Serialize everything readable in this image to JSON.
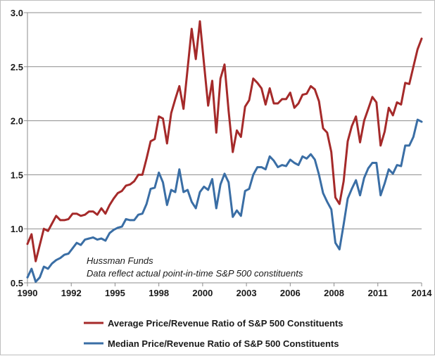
{
  "chart_data": {
    "type": "line",
    "title": "",
    "xlabel": "",
    "ylabel": "",
    "xlim": [
      1990,
      2014
    ],
    "ylim": [
      0.5,
      3.0
    ],
    "x_ticks": [
      "1990",
      "1992",
      "1995",
      "1998",
      "2000",
      "2003",
      "2006",
      "2008",
      "2011",
      "2014"
    ],
    "y_ticks": [
      "0.5",
      "1.0",
      "1.5",
      "2.0",
      "2.5",
      "3.0"
    ],
    "grid": "horizontal",
    "legend_position": "bottom",
    "annotations": [
      "Hussman Funds",
      "Data reflect actual point-in-time S&P 500 constituents"
    ],
    "series": [
      {
        "name": "Average Price/Revenue Ratio of S&P 500 Constituents",
        "color": "#a52a2a",
        "points": [
          [
            1990.0,
            0.86
          ],
          [
            1990.25,
            0.95
          ],
          [
            1990.5,
            0.7
          ],
          [
            1990.75,
            0.85
          ],
          [
            1991.0,
            1.0
          ],
          [
            1991.25,
            0.98
          ],
          [
            1991.5,
            1.05
          ],
          [
            1991.75,
            1.12
          ],
          [
            1992.0,
            1.08
          ],
          [
            1992.25,
            1.08
          ],
          [
            1992.5,
            1.09
          ],
          [
            1992.75,
            1.14
          ],
          [
            1993.0,
            1.14
          ],
          [
            1993.25,
            1.12
          ],
          [
            1993.5,
            1.13
          ],
          [
            1993.75,
            1.16
          ],
          [
            1994.0,
            1.16
          ],
          [
            1994.25,
            1.13
          ],
          [
            1994.5,
            1.19
          ],
          [
            1994.75,
            1.14
          ],
          [
            1995.0,
            1.22
          ],
          [
            1995.25,
            1.28
          ],
          [
            1995.5,
            1.33
          ],
          [
            1995.75,
            1.35
          ],
          [
            1996.0,
            1.4
          ],
          [
            1996.25,
            1.41
          ],
          [
            1996.5,
            1.44
          ],
          [
            1996.75,
            1.5
          ],
          [
            1997.0,
            1.5
          ],
          [
            1997.25,
            1.65
          ],
          [
            1997.5,
            1.81
          ],
          [
            1997.75,
            1.83
          ],
          [
            1998.0,
            2.04
          ],
          [
            1998.25,
            2.02
          ],
          [
            1998.5,
            1.79
          ],
          [
            1998.75,
            2.07
          ],
          [
            1999.0,
            2.2
          ],
          [
            1999.25,
            2.32
          ],
          [
            1999.5,
            2.11
          ],
          [
            1999.75,
            2.48
          ],
          [
            2000.0,
            2.85
          ],
          [
            2000.25,
            2.57
          ],
          [
            2000.5,
            2.92
          ],
          [
            2000.75,
            2.53
          ],
          [
            2001.0,
            2.14
          ],
          [
            2001.25,
            2.37
          ],
          [
            2001.5,
            1.89
          ],
          [
            2001.75,
            2.39
          ],
          [
            2002.0,
            2.52
          ],
          [
            2002.25,
            2.09
          ],
          [
            2002.5,
            1.71
          ],
          [
            2002.75,
            1.91
          ],
          [
            2003.0,
            1.85
          ],
          [
            2003.25,
            2.13
          ],
          [
            2003.5,
            2.19
          ],
          [
            2003.75,
            2.39
          ],
          [
            2004.0,
            2.35
          ],
          [
            2004.25,
            2.3
          ],
          [
            2004.5,
            2.15
          ],
          [
            2004.75,
            2.3
          ],
          [
            2005.0,
            2.16
          ],
          [
            2005.25,
            2.16
          ],
          [
            2005.5,
            2.2
          ],
          [
            2005.75,
            2.2
          ],
          [
            2006.0,
            2.26
          ],
          [
            2006.25,
            2.12
          ],
          [
            2006.5,
            2.16
          ],
          [
            2006.75,
            2.24
          ],
          [
            2007.0,
            2.25
          ],
          [
            2007.25,
            2.32
          ],
          [
            2007.5,
            2.29
          ],
          [
            2007.75,
            2.18
          ],
          [
            2008.0,
            1.93
          ],
          [
            2008.25,
            1.89
          ],
          [
            2008.5,
            1.71
          ],
          [
            2008.75,
            1.29
          ],
          [
            2009.0,
            1.23
          ],
          [
            2009.25,
            1.44
          ],
          [
            2009.5,
            1.81
          ],
          [
            2009.75,
            1.95
          ],
          [
            2010.0,
            2.04
          ],
          [
            2010.25,
            1.8
          ],
          [
            2010.5,
            2.0
          ],
          [
            2010.75,
            2.11
          ],
          [
            2011.0,
            2.22
          ],
          [
            2011.25,
            2.17
          ],
          [
            2011.5,
            1.77
          ],
          [
            2011.75,
            1.9
          ],
          [
            2012.0,
            2.12
          ],
          [
            2012.25,
            2.05
          ],
          [
            2012.5,
            2.17
          ],
          [
            2012.75,
            2.15
          ],
          [
            2013.0,
            2.35
          ],
          [
            2013.25,
            2.34
          ],
          [
            2013.5,
            2.5
          ],
          [
            2013.75,
            2.66
          ],
          [
            2014.0,
            2.76
          ]
        ]
      },
      {
        "name": "Median Price/Revenue Ratio of S&P 500 Constituents",
        "color": "#3a6ea5",
        "points": [
          [
            1990.0,
            0.55
          ],
          [
            1990.25,
            0.63
          ],
          [
            1990.5,
            0.51
          ],
          [
            1990.75,
            0.55
          ],
          [
            1991.0,
            0.65
          ],
          [
            1991.25,
            0.63
          ],
          [
            1991.5,
            0.68
          ],
          [
            1991.75,
            0.71
          ],
          [
            1992.0,
            0.73
          ],
          [
            1992.25,
            0.76
          ],
          [
            1992.5,
            0.77
          ],
          [
            1992.75,
            0.82
          ],
          [
            1993.0,
            0.87
          ],
          [
            1993.25,
            0.85
          ],
          [
            1993.5,
            0.9
          ],
          [
            1993.75,
            0.91
          ],
          [
            1994.0,
            0.92
          ],
          [
            1994.25,
            0.9
          ],
          [
            1994.5,
            0.91
          ],
          [
            1994.75,
            0.89
          ],
          [
            1995.0,
            0.96
          ],
          [
            1995.25,
            0.99
          ],
          [
            1995.5,
            1.01
          ],
          [
            1995.75,
            1.02
          ],
          [
            1996.0,
            1.09
          ],
          [
            1996.25,
            1.08
          ],
          [
            1996.5,
            1.08
          ],
          [
            1996.75,
            1.13
          ],
          [
            1997.0,
            1.14
          ],
          [
            1997.25,
            1.23
          ],
          [
            1997.5,
            1.37
          ],
          [
            1997.75,
            1.38
          ],
          [
            1998.0,
            1.52
          ],
          [
            1998.25,
            1.43
          ],
          [
            1998.5,
            1.22
          ],
          [
            1998.75,
            1.36
          ],
          [
            1999.0,
            1.34
          ],
          [
            1999.25,
            1.55
          ],
          [
            1999.5,
            1.34
          ],
          [
            1999.75,
            1.36
          ],
          [
            2000.0,
            1.25
          ],
          [
            2000.25,
            1.19
          ],
          [
            2000.5,
            1.34
          ],
          [
            2000.75,
            1.39
          ],
          [
            2001.0,
            1.36
          ],
          [
            2001.25,
            1.46
          ],
          [
            2001.5,
            1.19
          ],
          [
            2001.75,
            1.41
          ],
          [
            2002.0,
            1.51
          ],
          [
            2002.25,
            1.43
          ],
          [
            2002.5,
            1.11
          ],
          [
            2002.75,
            1.17
          ],
          [
            2003.0,
            1.12
          ],
          [
            2003.25,
            1.35
          ],
          [
            2003.5,
            1.37
          ],
          [
            2003.75,
            1.5
          ],
          [
            2004.0,
            1.57
          ],
          [
            2004.25,
            1.57
          ],
          [
            2004.5,
            1.55
          ],
          [
            2004.75,
            1.67
          ],
          [
            2005.0,
            1.63
          ],
          [
            2005.25,
            1.57
          ],
          [
            2005.5,
            1.59
          ],
          [
            2005.75,
            1.58
          ],
          [
            2006.0,
            1.64
          ],
          [
            2006.25,
            1.61
          ],
          [
            2006.5,
            1.59
          ],
          [
            2006.75,
            1.67
          ],
          [
            2007.0,
            1.65
          ],
          [
            2007.25,
            1.69
          ],
          [
            2007.5,
            1.64
          ],
          [
            2007.75,
            1.5
          ],
          [
            2008.0,
            1.33
          ],
          [
            2008.25,
            1.25
          ],
          [
            2008.5,
            1.18
          ],
          [
            2008.75,
            0.87
          ],
          [
            2009.0,
            0.81
          ],
          [
            2009.25,
            1.04
          ],
          [
            2009.5,
            1.28
          ],
          [
            2009.75,
            1.37
          ],
          [
            2010.0,
            1.45
          ],
          [
            2010.25,
            1.31
          ],
          [
            2010.5,
            1.47
          ],
          [
            2010.75,
            1.56
          ],
          [
            2011.0,
            1.61
          ],
          [
            2011.25,
            1.61
          ],
          [
            2011.5,
            1.31
          ],
          [
            2011.75,
            1.42
          ],
          [
            2012.0,
            1.55
          ],
          [
            2012.25,
            1.51
          ],
          [
            2012.5,
            1.59
          ],
          [
            2012.75,
            1.58
          ],
          [
            2013.0,
            1.77
          ],
          [
            2013.25,
            1.77
          ],
          [
            2013.5,
            1.85
          ],
          [
            2013.75,
            2.01
          ],
          [
            2014.0,
            1.99
          ]
        ]
      }
    ]
  }
}
